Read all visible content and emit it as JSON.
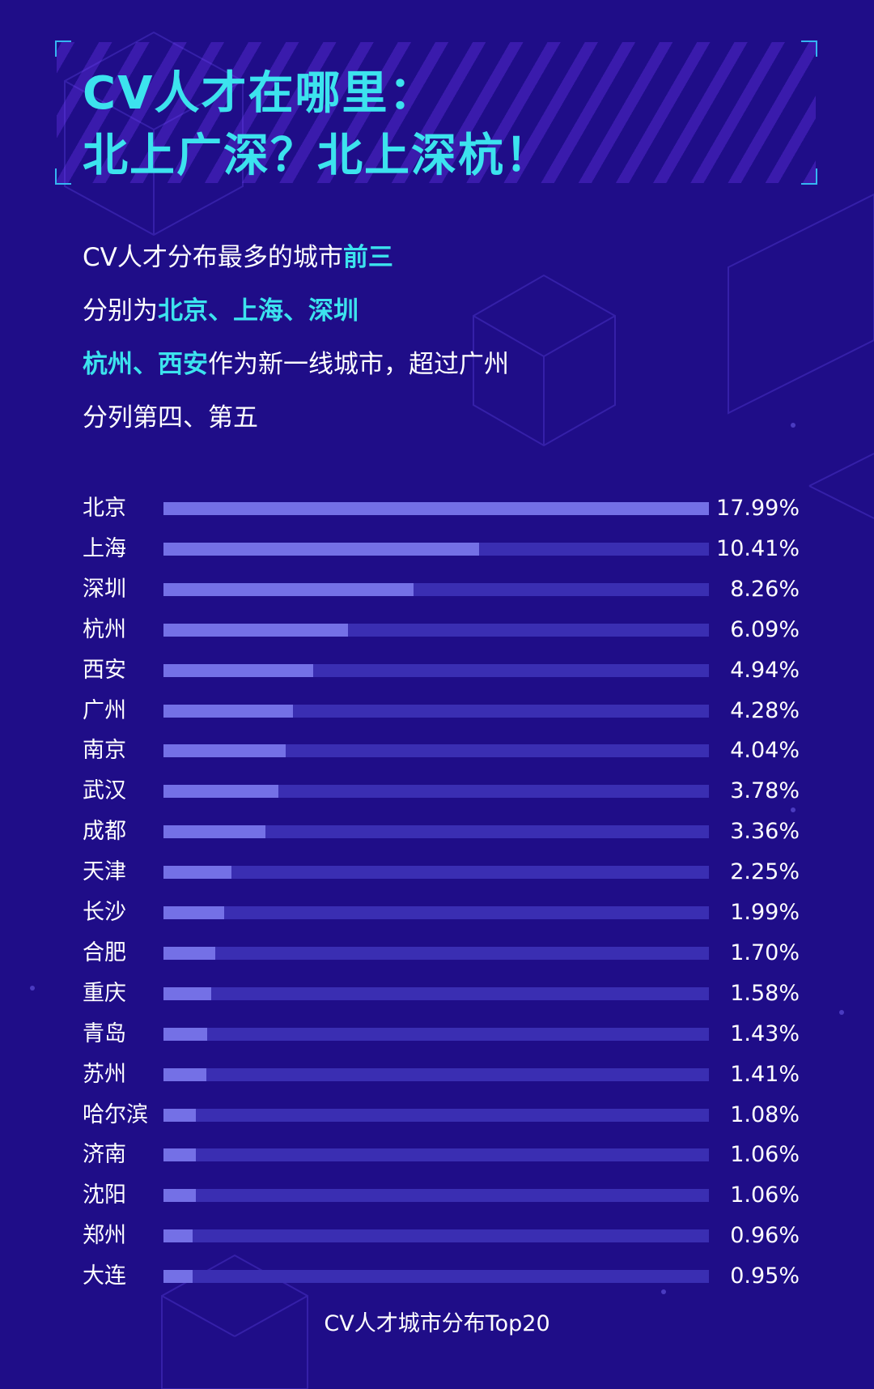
{
  "title": {
    "line1": "CV人才在哪里：",
    "line2": "北上广深？北上深杭！"
  },
  "intro": {
    "line1_a": "CV人才分布最多的城市",
    "line1_b": "前三",
    "line2_a": "分别为",
    "line2_b": "北京、上海、深圳",
    "line3_a": "杭州、西安",
    "line3_b": "作为新一线城市，超过广州",
    "line4": "分列第四、第五"
  },
  "chart_data": {
    "type": "bar",
    "orientation": "horizontal",
    "title": "CV人才城市分布Top20",
    "categories": [
      "北京",
      "上海",
      "深圳",
      "杭州",
      "西安",
      "广州",
      "南京",
      "武汉",
      "成都",
      "天津",
      "长沙",
      "合肥",
      "重庆",
      "青岛",
      "苏州",
      "哈尔滨",
      "济南",
      "沈阳",
      "郑州",
      "大连"
    ],
    "values": [
      17.99,
      10.41,
      8.26,
      6.09,
      4.94,
      4.28,
      4.04,
      3.78,
      3.36,
      2.25,
      1.99,
      1.7,
      1.58,
      1.43,
      1.41,
      1.08,
      1.06,
      1.06,
      0.96,
      0.95
    ],
    "value_labels": [
      "17.99%",
      "10.41%",
      "8.26%",
      "6.09%",
      "4.94%",
      "4.28%",
      "4.04%",
      "3.78%",
      "3.36%",
      "2.25%",
      "1.99%",
      "1.70%",
      "1.58%",
      "1.43%",
      "1.41%",
      "1.08%",
      "1.06%",
      "1.06%",
      "0.96%",
      "0.95%"
    ],
    "unit": "%",
    "xlim": [
      0,
      17.99
    ],
    "grid": false,
    "colors": {
      "bar": "#7470e6",
      "track": "#3a2eb2"
    }
  },
  "colors": {
    "background": "#1f0d88",
    "accent": "#3ce3ee",
    "frame": "#35b6f2"
  }
}
